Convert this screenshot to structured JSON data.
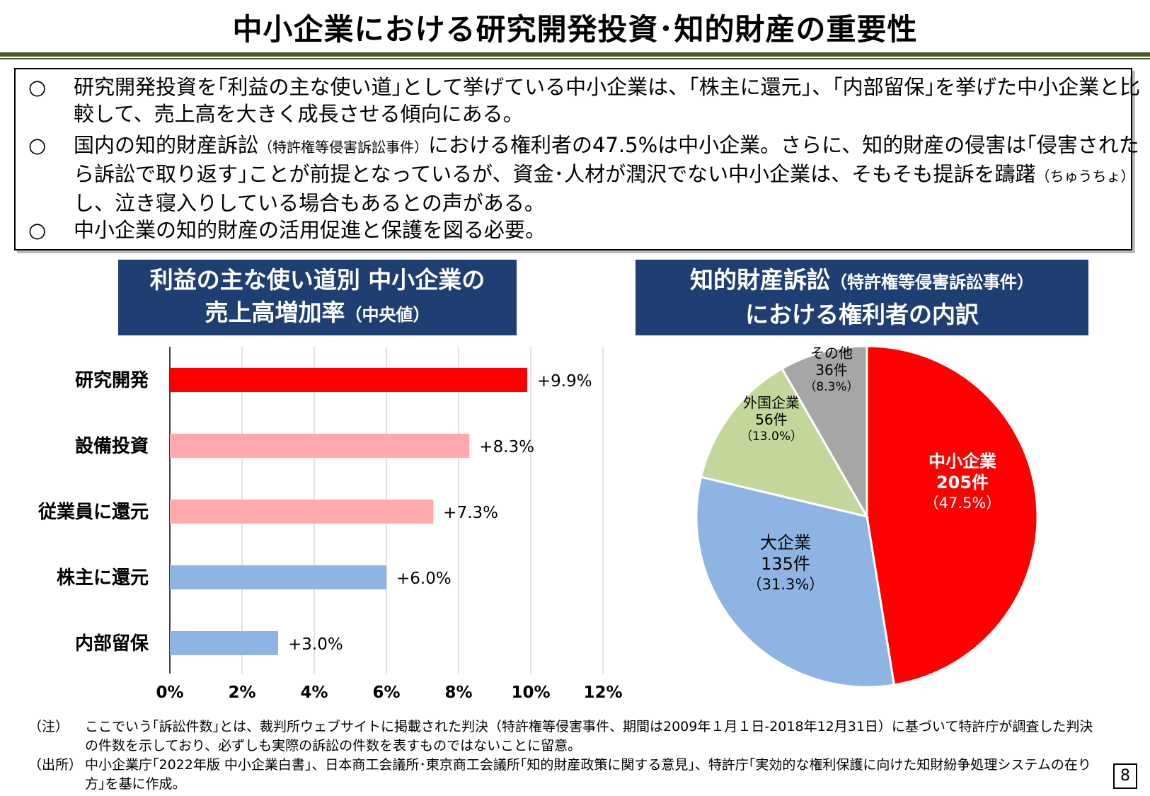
{
  "title": "中小企業における研究開発投資･知的財産の重要性",
  "summary": [
    {
      "mark": "○",
      "text": "研究開発投資を｢利益の主な使い道｣として挙げている中小企業は、｢株主に還元｣、｢内部留保｣を挙げた中小企業と比較して、売上高を大きく成長させる傾向にある。"
    },
    {
      "mark": "○",
      "text_a": "国内の知的財産訴訟",
      "text_small": "（特許権等侵害訴訟事件）",
      "text_b": "における権利者の47.5%は中小企業。さらに、知的財産の侵害は｢侵害されたら訴訟で取り返す｣ことが前提となっているが、資金･人材が潤沢でない中小企業は、そもそも提訴を躊躇",
      "text_small2": "（ちゅうちょ）",
      "text_c": "し、泣き寝入りしている場合もあるとの声がある。"
    },
    {
      "mark": "○",
      "text": "中小企業の知的財産の活用促進と保護を図る必要。"
    }
  ],
  "left_header": {
    "line1": "利益の主な使い道別 中小企業の",
    "line2": "売上高増加率",
    "line2_small": "（中央値）"
  },
  "right_header": {
    "line1": "知的財産訴訟",
    "line1_small": "（特許権等侵害訴訟事件）",
    "line2": "における権利者の内訳"
  },
  "chart_data": [
    {
      "type": "bar",
      "orientation": "horizontal",
      "categories": [
        "研究開発",
        "設備投資",
        "従業員に還元",
        "株主に還元",
        "内部留保"
      ],
      "values": [
        9.9,
        8.3,
        7.3,
        6.0,
        3.0
      ],
      "value_labels": [
        "+9.9%",
        "+8.3%",
        "+7.3%",
        "+6.0%",
        "+3.0%"
      ],
      "colors": [
        "#ff0000",
        "#ffa9ad",
        "#ffa9ad",
        "#8eb4e3",
        "#8eb4e3"
      ],
      "xlim": [
        0,
        12
      ],
      "xticks": [
        0,
        2,
        4,
        6,
        8,
        10,
        12
      ],
      "xtick_labels": [
        "0%",
        "2%",
        "4%",
        "6%",
        "8%",
        "10%",
        "12%"
      ],
      "grid": true
    },
    {
      "type": "pie",
      "slices": [
        {
          "name": "中小企業",
          "count": "205件",
          "pct": "（47.5%）",
          "value": 47.5,
          "color": "#ff0000",
          "label_color": "#ffffff"
        },
        {
          "name": "大企業",
          "count": "135件",
          "pct": "（31.3%）",
          "value": 31.3,
          "color": "#8eb4e3",
          "label_color": "#000000"
        },
        {
          "name": "外国企業",
          "count": "56件",
          "pct": "（13.0%）",
          "value": 13.0,
          "color": "#c4d79b",
          "label_color": "#000000"
        },
        {
          "name": "その他",
          "count": "36件",
          "pct": "（8.3%）",
          "value": 8.3,
          "color": "#a6a6a6",
          "label_color": "#000000"
        }
      ]
    }
  ],
  "notes": [
    {
      "label": "（注）",
      "text": "ここでいう｢訴訟件数｣とは、裁判所ウェブサイトに掲載された判決（特許権等侵害事件、期間は2009年１月１日-2018年12月31日）に基づいて特許庁が調査した判決の件数を示しており、必ずしも実際の訴訟の件数を表すものではないことに留意。"
    },
    {
      "label": "（出所）",
      "text": "中小企業庁｢2022年版 中小企業白書｣、日本商工会議所･東京商工会議所｢知的財産政策に関する意見｣、特許庁｢実効的な権利保護に向けた知財紛争処理システムの在り方｣を基に作成。"
    }
  ],
  "page_number": "8"
}
